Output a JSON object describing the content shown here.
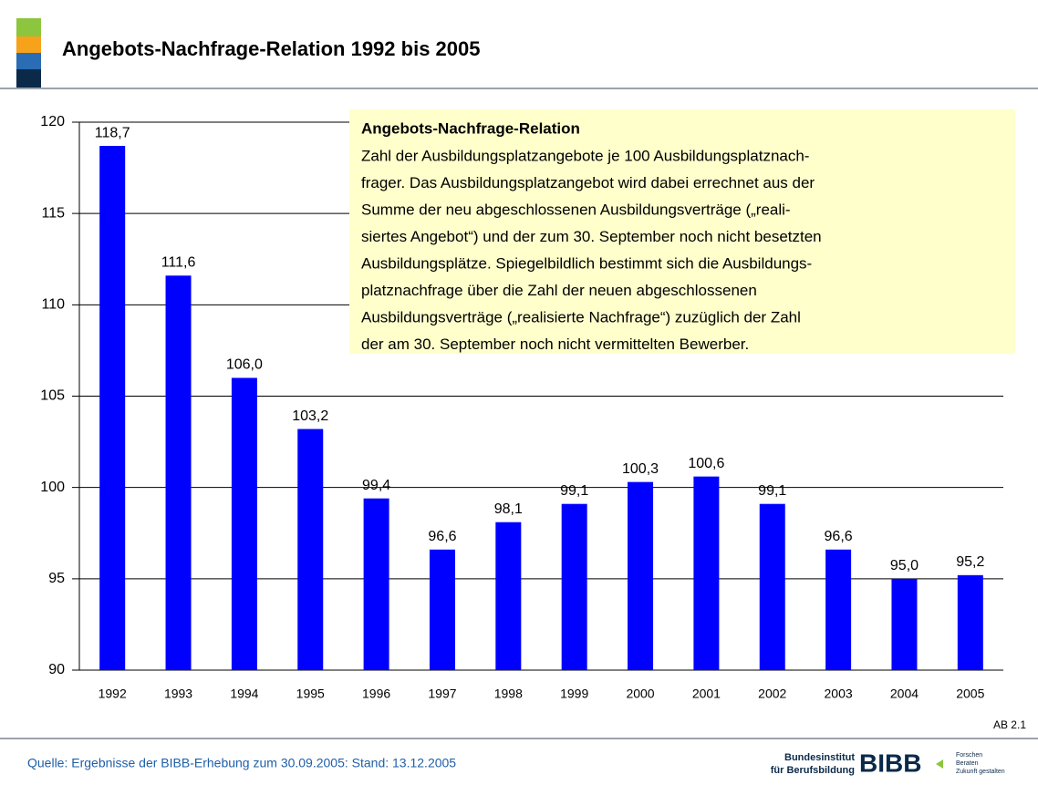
{
  "chart_data": {
    "type": "bar",
    "title": "Angebots-Nachfrage-Relation 1992 bis 2005",
    "categories": [
      "1992",
      "1993",
      "1994",
      "1995",
      "1996",
      "1997",
      "1998",
      "1999",
      "2000",
      "2001",
      "2002",
      "2003",
      "2004",
      "2005"
    ],
    "values": [
      118.7,
      111.6,
      106.0,
      103.2,
      99.4,
      96.6,
      98.1,
      99.1,
      100.3,
      100.6,
      99.1,
      96.6,
      95.0,
      95.2
    ],
    "value_labels": [
      "118,7",
      "111,6",
      "106,0",
      "103,2",
      "99,4",
      "96,6",
      "98,1",
      "99,1",
      "100,3",
      "100,6",
      "99,1",
      "96,6",
      "95,0",
      "95,2"
    ],
    "color": "#0000ff",
    "ylim": [
      90,
      120
    ],
    "yticks": [
      90,
      95,
      100,
      105,
      110,
      115,
      120
    ],
    "grid": true,
    "annotation": {
      "title": "Angebots-Nachfrage-Relation",
      "lines": [
        "Zahl der Ausbildungsplatzangebote je 100 Ausbildungsplatznach-",
        "frager. Das Ausbildungsplatzangebot wird dabei errechnet aus der",
        "Summe der neu abgeschlossenen Ausbildungsverträge („reali-",
        "siertes Angebot“) und der zum 30. September noch nicht besetzten",
        "Ausbildungsplätze. Spiegelbildlich bestimmt sich die Ausbildungs-",
        "platznachfrage über die Zahl der neuen abgeschlossenen",
        "Ausbildungsverträge („realisierte Nachfrage“) zuzüglich der Zahl",
        "der am 30. September noch nicht vermittelten Bewerber."
      ]
    }
  },
  "slide_number": "AB 2.1",
  "source": "Quelle: Ergebnisse der BIBB-Erhebung zum 30.09.2005: Stand: 13.12.2005",
  "logo": {
    "name_lines": [
      "Bundesinstitut",
      "für Berufsbildung"
    ],
    "mark": "BIBB",
    "slogan": [
      "Forschen",
      "Beraten",
      "Zukunft gestalten"
    ]
  }
}
